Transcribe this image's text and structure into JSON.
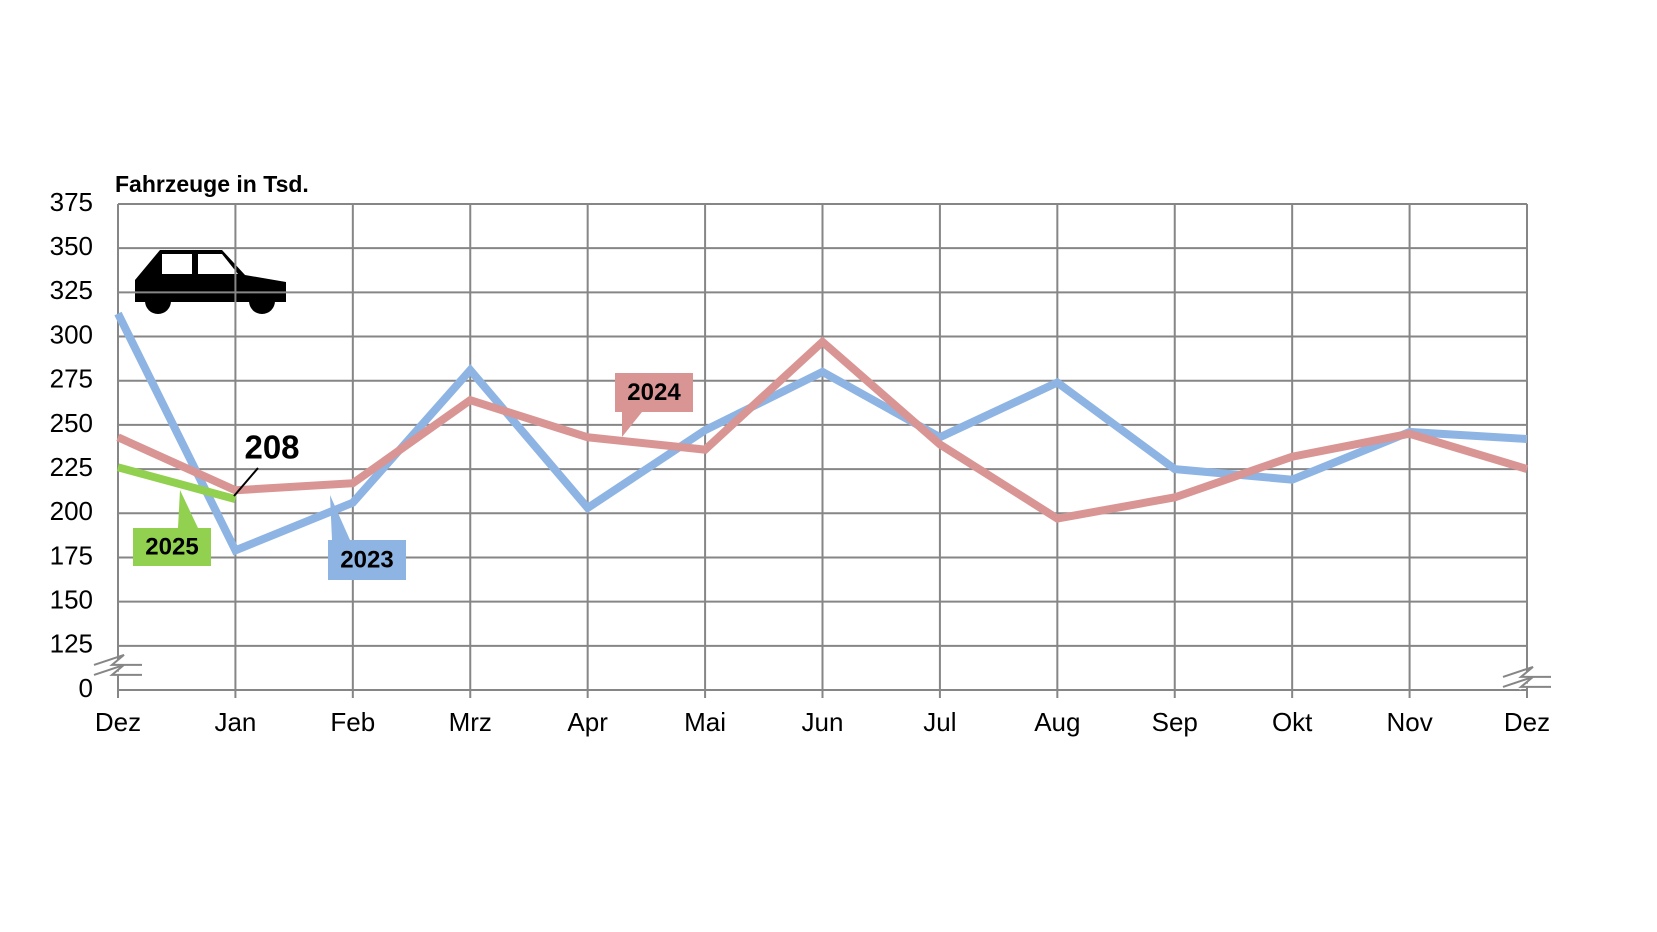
{
  "chart_data": {
    "type": "line",
    "y_axis_label": "Fahrzeuge in Tsd.",
    "categories": [
      "Dez",
      "Jan",
      "Feb",
      "Mrz",
      "Apr",
      "Mai",
      "Jun",
      "Jul",
      "Aug",
      "Sep",
      "Okt",
      "Nov",
      "Dez"
    ],
    "series": [
      {
        "name": "2023",
        "color": "#8eb4e3",
        "values": [
          313,
          179,
          206,
          281,
          203,
          247,
          280,
          243,
          274,
          225,
          219,
          246,
          242
        ]
      },
      {
        "name": "2024",
        "color": "#d99594",
        "values": [
          243,
          213,
          217,
          264,
          243,
          236,
          297,
          239,
          197,
          209,
          232,
          245,
          225
        ]
      },
      {
        "name": "2025",
        "color": "#92d050",
        "values": [
          226,
          208,
          null,
          null,
          null,
          null,
          null,
          null,
          null,
          null,
          null,
          null,
          null
        ]
      }
    ],
    "ylim": [
      0,
      375
    ],
    "yticks": [
      0,
      125,
      150,
      175,
      200,
      225,
      250,
      275,
      300,
      325,
      350,
      375
    ],
    "axis_break": true,
    "grid": true
  }
}
